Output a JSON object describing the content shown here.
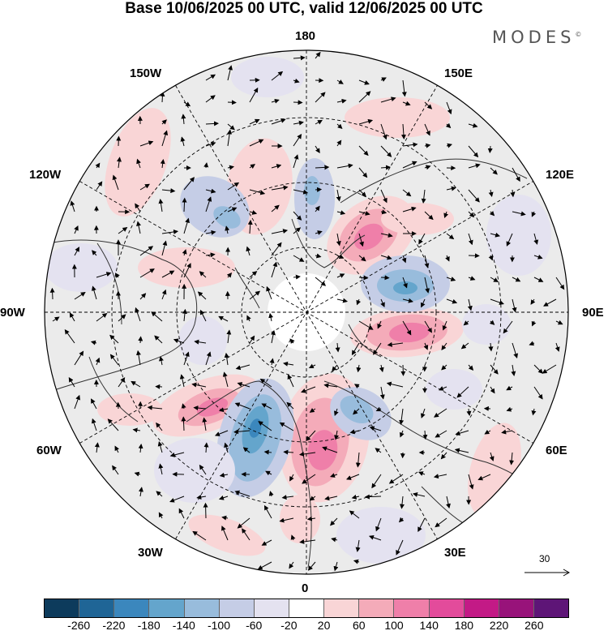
{
  "title": "Base 10/06/2025 00 UTC, valid 12/06/2025 00 UTC",
  "brand": "MODES",
  "brand_mark": "©",
  "longitude_labels": {
    "top": "180",
    "top_left": "150W",
    "top_right": "150E",
    "upper_left": "120W",
    "upper_right": "120E",
    "left": "90W",
    "right": "90E",
    "lower_left": "60W",
    "lower_right": "60E",
    "bottom_left": "30W",
    "bottom_right": "30E",
    "bottom": "0"
  },
  "reference_vector": {
    "label": "30"
  },
  "colorbar": {
    "colors": [
      "#0d3b5c",
      "#1f6596",
      "#3b87bd",
      "#64a5cc",
      "#98bcdc",
      "#c5cde6",
      "#e4e2f0",
      "#ffffff",
      "#f9d5d6",
      "#f4abb9",
      "#ef7fa9",
      "#e34b9b",
      "#c31a86",
      "#98137a",
      "#5e1577"
    ],
    "ticks": [
      "-260",
      "-220",
      "-180",
      "-140",
      "-100",
      "-60",
      "-20",
      "20",
      "60",
      "100",
      "140",
      "180",
      "220",
      "260"
    ]
  }
}
